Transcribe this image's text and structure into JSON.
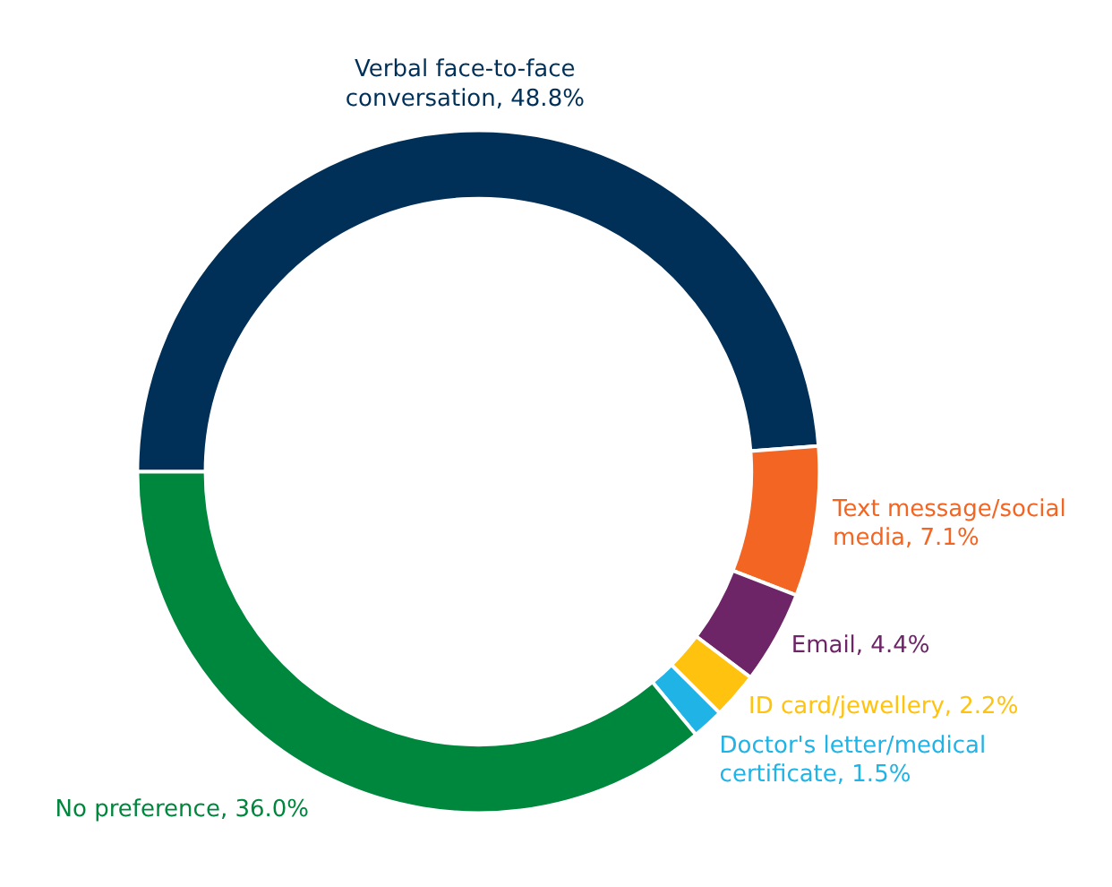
{
  "chart_data": {
    "type": "donut",
    "categories": [
      "Verbal face-to-face conversation",
      "Text message/social media",
      "Email",
      "ID card/jewellery",
      "Doctor's letter/medical certificate",
      "No preference"
    ],
    "values": [
      48.8,
      7.1,
      4.4,
      2.2,
      1.5,
      36.0
    ],
    "value_labels": [
      "48.8%",
      "7.1%",
      "4.4%",
      "2.2%",
      "1.5%",
      "36.0%"
    ],
    "colors": [
      "#003057",
      "#f26522",
      "#6d2568",
      "#ffc20e",
      "#1fb3e6",
      "#00873e"
    ]
  }
}
